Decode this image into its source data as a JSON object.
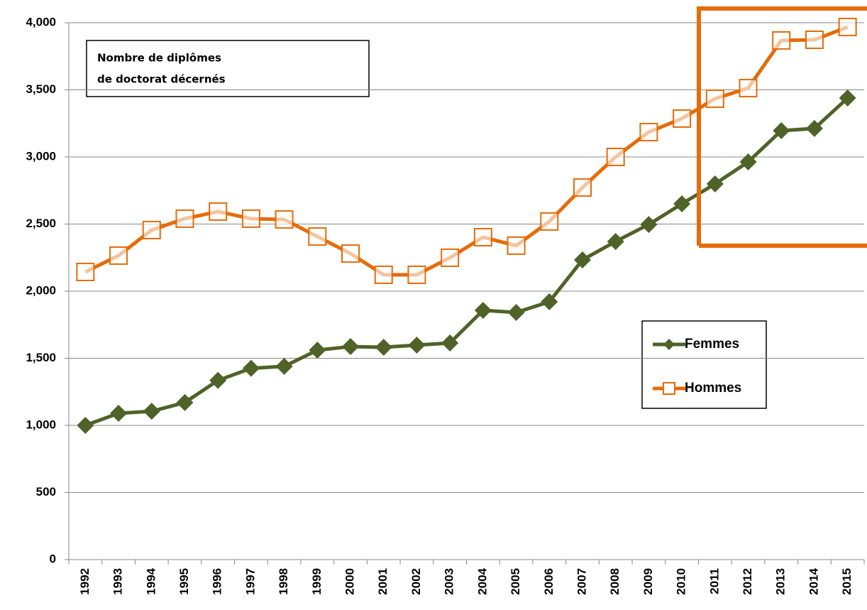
{
  "chart_data": {
    "type": "line",
    "title": [
      "Nombre de diplômes",
      "de doctorat décernés"
    ],
    "categories": [
      "1992",
      "1993",
      "1994",
      "1995",
      "1996",
      "1997",
      "1998",
      "1999",
      "2000",
      "2001",
      "2002",
      "2003",
      "2004",
      "2005",
      "2006",
      "2007",
      "2008",
      "2009",
      "2010",
      "2011",
      "2012",
      "2013",
      "2014",
      "2015"
    ],
    "series": [
      {
        "name": "Femmes",
        "color": "#4f6228",
        "marker": "diamond",
        "values": [
          1000,
          1090,
          1105,
          1170,
          1335,
          1425,
          1440,
          1560,
          1587,
          1582,
          1598,
          1614,
          1857,
          1841,
          1921,
          2233,
          2370,
          2497,
          2651,
          2799,
          2963,
          3196,
          3212,
          3439
        ]
      },
      {
        "name": "Hommes",
        "color": "#e46c0a",
        "marker": "square",
        "values": [
          2143,
          2265,
          2455,
          2540,
          2593,
          2540,
          2534,
          2407,
          2280,
          2122,
          2122,
          2249,
          2402,
          2339,
          2519,
          2772,
          3000,
          3185,
          3286,
          3434,
          3513,
          3868,
          3873,
          3968
        ]
      }
    ],
    "ylim": [
      0,
      4000
    ],
    "yticks": [
      0,
      500,
      {
        "value": 1000,
        "label": "1,000"
      },
      {
        "value": 1500,
        "label": "1,500"
      },
      {
        "value": 2000,
        "label": "2,000"
      },
      {
        "value": 2500,
        "label": "2,500"
      },
      {
        "value": 3000,
        "label": "3,000"
      },
      {
        "value": 3500,
        "label": "3,500"
      },
      {
        "value": 4000,
        "label": "4,000"
      }
    ],
    "grid": true
  }
}
